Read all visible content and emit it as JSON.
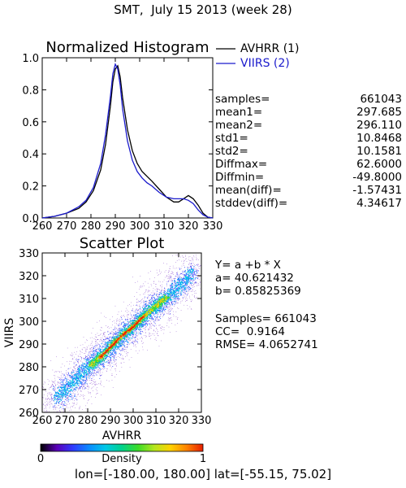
{
  "title": "SMT,  July 15 2013 (week 28)",
  "histogram": {
    "title": "Normalized Histogram",
    "legend": [
      {
        "label": "AVHRR (1)",
        "color": "#000000"
      },
      {
        "label": "VIIRS (2)",
        "color": "#1a1acc"
      }
    ],
    "stats": [
      {
        "label": "samples=",
        "value": "661043"
      },
      {
        "label": "mean1=",
        "value": "297.685"
      },
      {
        "label": "mean2=",
        "value": "296.110"
      },
      {
        "label": "std1=",
        "value": "10.8468"
      },
      {
        "label": "std2=",
        "value": "10.1581"
      },
      {
        "label": "Diffmax=",
        "value": "62.6000"
      },
      {
        "label": "Diffmin=",
        "value": "-49.8000"
      },
      {
        "label": "mean(diff)=",
        "value": "-1.57431"
      },
      {
        "label": "stddev(diff)=",
        "value": "4.34617"
      }
    ]
  },
  "scatter": {
    "title": "Scatter Plot",
    "fit_lines": [
      "Y= a +b * X",
      "a= 40.621432",
      "b= 0.85825369",
      "",
      "Samples= 661043",
      "CC=  0.9164",
      "RMSE= 4.0652741"
    ]
  },
  "colorbar": {
    "label": "Density",
    "min_label": "0",
    "max_label": "1"
  },
  "footer": "lon=[-180.00, 180.00] lat=[-55.15, 75.02]",
  "chart_data": [
    {
      "type": "line",
      "title": "Normalized Histogram",
      "xlim": [
        260,
        330
      ],
      "ylim": [
        0,
        1.0
      ],
      "x_ticks": [
        "260",
        "270",
        "280",
        "290",
        "300",
        "310",
        "320",
        "330"
      ],
      "y_ticks": [
        "0.0",
        "0.2",
        "0.4",
        "0.6",
        "0.8",
        "1.0"
      ],
      "legend_position": "top-right, outside plot",
      "series": [
        {
          "name": "AVHRR (1)",
          "color": "#000000",
          "x": [
            260,
            265,
            270,
            275,
            278,
            281,
            284,
            286,
            288,
            289,
            290,
            291,
            292,
            293,
            295,
            297,
            299,
            301,
            303,
            305,
            308,
            311,
            314,
            316,
            318,
            320,
            322,
            324,
            326,
            328,
            330
          ],
          "y": [
            0.0,
            0.01,
            0.03,
            0.06,
            0.1,
            0.17,
            0.3,
            0.46,
            0.7,
            0.85,
            0.93,
            0.95,
            0.88,
            0.75,
            0.55,
            0.42,
            0.34,
            0.29,
            0.26,
            0.23,
            0.18,
            0.13,
            0.1,
            0.1,
            0.12,
            0.14,
            0.12,
            0.08,
            0.03,
            0.005,
            0.0
          ]
        },
        {
          "name": "VIIRS (2)",
          "color": "#1a1acc",
          "x": [
            260,
            265,
            270,
            275,
            278,
            281,
            284,
            286,
            288,
            289,
            290,
            291,
            292,
            293,
            295,
            297,
            299,
            301,
            303,
            305,
            308,
            311,
            314,
            316,
            318,
            320,
            322,
            324,
            326,
            328,
            330
          ],
          "y": [
            0.0,
            0.01,
            0.03,
            0.07,
            0.11,
            0.19,
            0.34,
            0.52,
            0.76,
            0.9,
            0.96,
            0.93,
            0.83,
            0.68,
            0.48,
            0.36,
            0.29,
            0.25,
            0.22,
            0.2,
            0.16,
            0.13,
            0.12,
            0.12,
            0.12,
            0.11,
            0.09,
            0.05,
            0.02,
            0.005,
            0.0
          ]
        }
      ]
    },
    {
      "type": "heatmap",
      "title": "Scatter Plot",
      "xlabel": "AVHRR",
      "ylabel": "VIIRS",
      "xlim": [
        260,
        330
      ],
      "ylim": [
        260,
        330
      ],
      "x_ticks": [
        "260",
        "270",
        "280",
        "290",
        "300",
        "310",
        "320",
        "330"
      ],
      "y_ticks": [
        "260",
        "270",
        "280",
        "290",
        "300",
        "310",
        "320",
        "330"
      ],
      "fit": {
        "a": 40.621432,
        "b": 0.85825369
      },
      "ridge": {
        "x": [
          262,
          270,
          280,
          286,
          290,
          295,
          300,
          305,
          310,
          315,
          320,
          326,
          330
        ],
        "y": [
          263,
          270,
          280,
          285,
          289,
          294,
          298,
          303,
          307,
          311,
          315,
          322,
          327
        ]
      },
      "peak_density_at": [
        293,
        295
      ],
      "colorbar": {
        "label": "Density",
        "range": [
          0,
          1
        ]
      }
    }
  ]
}
